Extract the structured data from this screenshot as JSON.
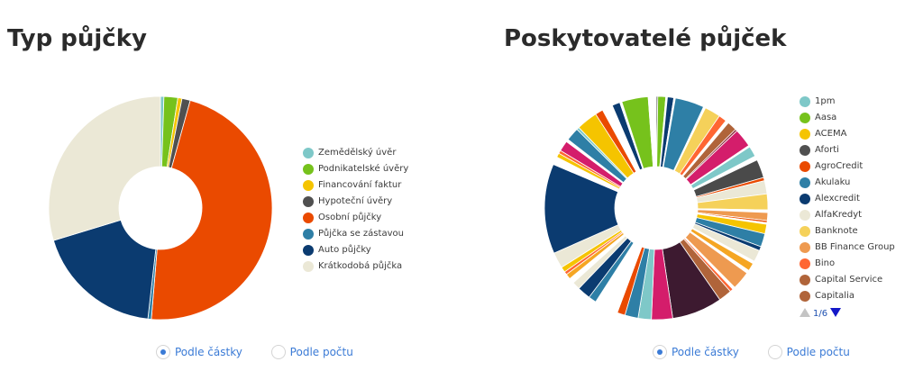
{
  "left": {
    "title": "Typ půjčky",
    "radio_by_amount": "Podle částky",
    "radio_by_count": "Podle počtu",
    "selected": "amount"
  },
  "right": {
    "title": "Poskytovatelé půjček",
    "radio_by_amount": "Podle částky",
    "radio_by_count": "Podle počtu",
    "selected": "amount",
    "pager": {
      "label": "1/6"
    }
  },
  "chart_data": [
    {
      "type": "pie",
      "title": "Typ půjčky",
      "donut": true,
      "legend_position": "right",
      "categories": [
        "Zemědělský úvěr",
        "Podnikatelské úvěry",
        "Financování faktur",
        "Hypoteční úvěry",
        "Osobní půjčky",
        "Půjčka se zástavou",
        "Auto půjčky",
        "Krátkodobá půjčka"
      ],
      "values": [
        0.5,
        2.0,
        0.6,
        1.2,
        47.0,
        0.5,
        18.5,
        29.7
      ],
      "colors": [
        "#7ec8c8",
        "#76c21c",
        "#f5c400",
        "#505050",
        "#ea4a00",
        "#2e7fa6",
        "#0b3b70",
        "#ebe8d6"
      ]
    },
    {
      "type": "pie",
      "title": "Poskytovatelé půjček",
      "donut": true,
      "legend_position": "right",
      "legend_page": "1/6",
      "legend_entries": [
        "1pm",
        "Aasa",
        "ACEMA",
        "Aforti",
        "AgroCredit",
        "Akulaku",
        "Alexcredit",
        "AlfaKredyt",
        "Banknote",
        "BB Finance Group",
        "Bino",
        "Capital Service",
        "Capitalia"
      ],
      "values": [
        0.3,
        1.5,
        0.3,
        1.2,
        0.3,
        5.5,
        0.4,
        3.0,
        1.5,
        0.6,
        1.8,
        0.4,
        3.5,
        0.3,
        2.0,
        0.8,
        3.5,
        0.6,
        2.5,
        3.0,
        0.5,
        1.5,
        0.4,
        0.3,
        1.8,
        2.5,
        0.8,
        2.2,
        0.5,
        1.5,
        0.6,
        3.5,
        0.5,
        0.6,
        2.5,
        9.5,
        4.0,
        2.5,
        2.5,
        1.5,
        4.5,
        1.5,
        2.5,
        1.5,
        1.0,
        1.0,
        0.6,
        1.0,
        3.0,
        17.0,
        1.5,
        0.8,
        0.6,
        2.0,
        0.5,
        2.5,
        0.5,
        4.0,
        1.5,
        2.0,
        1.5,
        0.4,
        5.0,
        1.5
      ],
      "colors": [
        "#4a4a4a",
        "#76c21c",
        "#ffffff",
        "#0b3b70",
        "#ffffff",
        "#2e7fa6",
        "#ffffff",
        "#f5d15a",
        "#ff6633",
        "#ffffff",
        "#b0643a",
        "#8b2a3a",
        "#d41d6b",
        "#ffffff",
        "#7ec8c8",
        "#ffffff",
        "#4a4a4a",
        "#ea4a00",
        "#ebe8d6",
        "#f5d15a",
        "#ffffff",
        "#ee9a50",
        "#ea4a00",
        "#ffffff",
        "#f5c400",
        "#2e7fa6",
        "#0b3b70",
        "#ebe8d6",
        "#ffffff",
        "#f5a623",
        "#ffffff",
        "#ee9a50",
        "#ffffff",
        "#ff6633",
        "#b0643a",
        "#3d1a30",
        "#d41d6b",
        "#7ec8c8",
        "#2e7fa6",
        "#ea4a00",
        "#ffffff",
        "#2e7fa6",
        "#0b3b70",
        "#ebe8d6",
        "#ffffff",
        "#f5a623",
        "#ff6633",
        "#f5c400",
        "#ebe8d6",
        "#0b3b70",
        "#ffffff",
        "#f5c400",
        "#ff6633",
        "#d41d6b",
        "#ffffff",
        "#2e7fa6",
        "#7ec8c8",
        "#f5c400",
        "#ea4a00",
        "#ffffff",
        "#0b3b70",
        "#ffffff",
        "#76c21c",
        "#ffffff"
      ]
    }
  ]
}
